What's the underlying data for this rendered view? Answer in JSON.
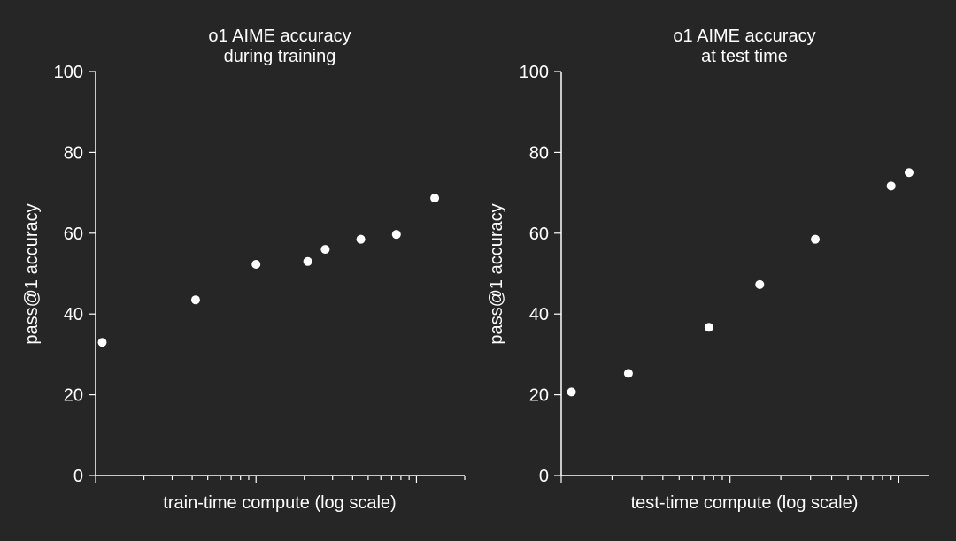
{
  "background": "#262626",
  "foreground": "#ffffff",
  "chart_data": [
    {
      "type": "scatter",
      "title": [
        "o1 AIME accuracy",
        "during training"
      ],
      "xlabel": "train-time compute (log scale)",
      "ylabel": "pass@1 accuracy",
      "x_scale": "log",
      "x_tick_labels_shown": false,
      "ylim": [
        0,
        100
      ],
      "yticks": [
        0,
        20,
        40,
        60,
        80,
        100
      ],
      "grid": false,
      "points": [
        {
          "x": 1.1,
          "y": 33
        },
        {
          "x": 4.2,
          "y": 43.5
        },
        {
          "x": 10,
          "y": 52.3
        },
        {
          "x": 21,
          "y": 53
        },
        {
          "x": 27,
          "y": 56
        },
        {
          "x": 45,
          "y": 58.5
        },
        {
          "x": 75,
          "y": 59.7
        },
        {
          "x": 130,
          "y": 68.7
        }
      ]
    },
    {
      "type": "scatter",
      "title": [
        "o1 AIME accuracy",
        "at test time"
      ],
      "xlabel": "test-time compute (log scale)",
      "ylabel": "pass@1 accuracy",
      "x_scale": "log",
      "x_tick_labels_shown": false,
      "ylim": [
        0,
        100
      ],
      "yticks": [
        0,
        20,
        40,
        60,
        80,
        100
      ],
      "grid": false,
      "points": [
        {
          "x": 1.15,
          "y": 20.7
        },
        {
          "x": 2.5,
          "y": 25.3
        },
        {
          "x": 7.5,
          "y": 36.7
        },
        {
          "x": 15,
          "y": 47.3
        },
        {
          "x": 32,
          "y": 58.5
        },
        {
          "x": 90,
          "y": 71.7
        },
        {
          "x": 115,
          "y": 75
        }
      ]
    }
  ]
}
